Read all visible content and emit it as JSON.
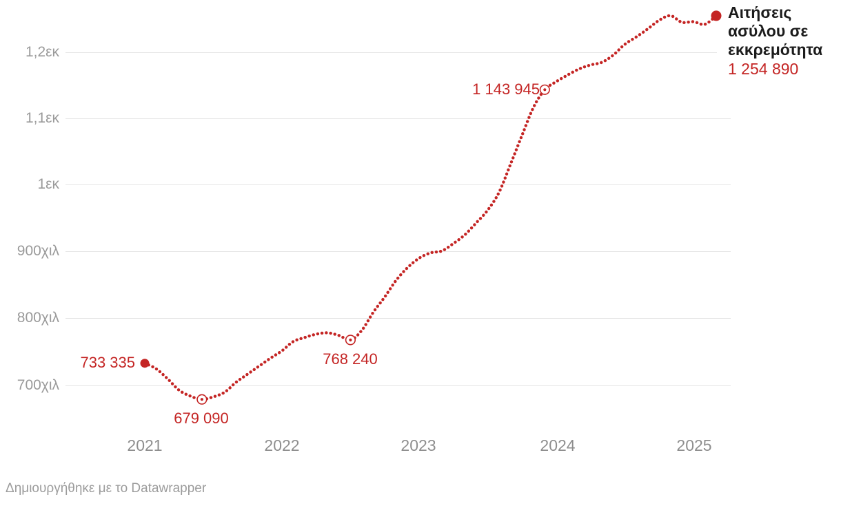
{
  "annotation": {
    "title": "Αιτήσεις ασύλου σε εκκρεμότητα",
    "value": "1 254 890"
  },
  "footer": {
    "text": "Δημιουργήθηκε με το Datawrapper"
  },
  "colors": {
    "line": "#c42524",
    "gridline": "#e4e4e4",
    "axis_text": "#9a9a9a",
    "annotation_text": "#1c1c1c"
  },
  "chart_data": {
    "type": "line",
    "title": "",
    "series_name": "Αιτήσεις ασύλου σε εκκρεμότητα",
    "frequency": "monthly",
    "x_start": "2021-01",
    "x_end": "2025-03",
    "line_style": "dotted",
    "line_color": "#c42524",
    "grid": true,
    "legend_position": "end-of-line",
    "y_tick_labels": [
      "1,2εκ",
      "1,1εκ",
      "1εκ",
      "900χιλ",
      "800χιλ",
      "700χιλ"
    ],
    "y_tick_values": [
      1200000,
      1100000,
      1000000,
      900000,
      800000,
      700000
    ],
    "x_tick_labels": [
      "2021",
      "2022",
      "2023",
      "2024",
      "2025"
    ],
    "ylim": [
      660000,
      1270000
    ],
    "values": [
      733335,
      725000,
      710000,
      693000,
      684000,
      679090,
      683000,
      690000,
      705000,
      717000,
      729000,
      741000,
      752000,
      766000,
      772000,
      777000,
      779000,
      775000,
      768240,
      783000,
      810000,
      833000,
      858000,
      877000,
      891000,
      899000,
      902000,
      913000,
      926000,
      944000,
      963000,
      990000,
      1032000,
      1075000,
      1117000,
      1143945,
      1156000,
      1166000,
      1175000,
      1181000,
      1185000,
      1196000,
      1212000,
      1223000,
      1235000,
      1248000,
      1255000,
      1245000,
      1246000,
      1242000,
      1254890
    ],
    "labeled_points": [
      {
        "index": 0,
        "value": 733335,
        "label": "733 335",
        "marker": "filled"
      },
      {
        "index": 5,
        "value": 679090,
        "label": "679 090",
        "marker": "open"
      },
      {
        "index": 18,
        "value": 768240,
        "label": "768 240",
        "marker": "open"
      },
      {
        "index": 35,
        "value": 1143945,
        "label": "1 143 945",
        "marker": "open"
      },
      {
        "index": 50,
        "value": 1254890,
        "label": "1 254 890",
        "marker": "filled"
      }
    ]
  }
}
